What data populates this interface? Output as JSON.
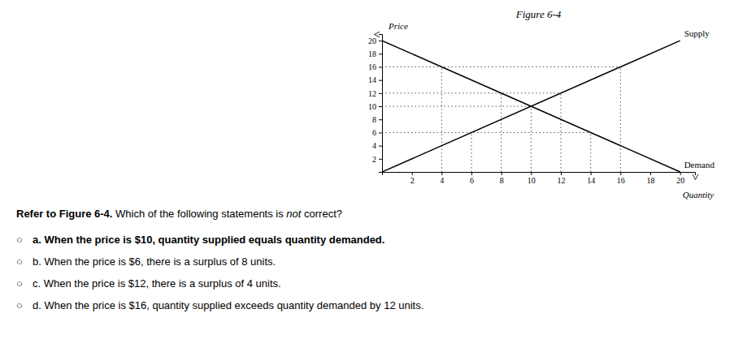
{
  "chart_data": {
    "type": "line",
    "title": "Figure 6-4",
    "xlabel": "Quantity",
    "ylabel": "Price",
    "xlim": [
      0,
      21
    ],
    "ylim": [
      0,
      21
    ],
    "xticks": [
      2,
      4,
      6,
      8,
      10,
      12,
      14,
      16,
      18,
      20
    ],
    "yticks": [
      2,
      4,
      6,
      8,
      10,
      12,
      14,
      16,
      18,
      20
    ],
    "series": [
      {
        "name": "Supply",
        "color": "#000000",
        "x": [
          0,
          20
        ],
        "values": [
          0,
          20
        ]
      },
      {
        "name": "Demand",
        "color": "#000000",
        "x": [
          0,
          20
        ],
        "values": [
          20,
          0
        ]
      }
    ],
    "guides": {
      "color": "#555555",
      "lines": [
        {
          "price": 6,
          "quantities": [
            6,
            14
          ]
        },
        {
          "price": 10,
          "quantities": [
            10
          ]
        },
        {
          "price": 12,
          "quantities": [
            8,
            12
          ]
        },
        {
          "price": 16,
          "quantities": [
            4,
            16
          ]
        }
      ]
    },
    "question": [
      "Refer to Figure 6-4.",
      " Which of the following statements is",
      " not",
      " correct?"
    ],
    "choice_symbol": "○",
    "choices": [
      "a. When the price is $10, quantity supplied equals quantity demanded.",
      "b. When the price is $6, there is a surplus of 8 units.",
      "c. When the price is $12, there is a surplus of 4 units.",
      "d. When the price is $16, quantity supplied exceeds quantity demanded by 12 units."
    ]
  }
}
